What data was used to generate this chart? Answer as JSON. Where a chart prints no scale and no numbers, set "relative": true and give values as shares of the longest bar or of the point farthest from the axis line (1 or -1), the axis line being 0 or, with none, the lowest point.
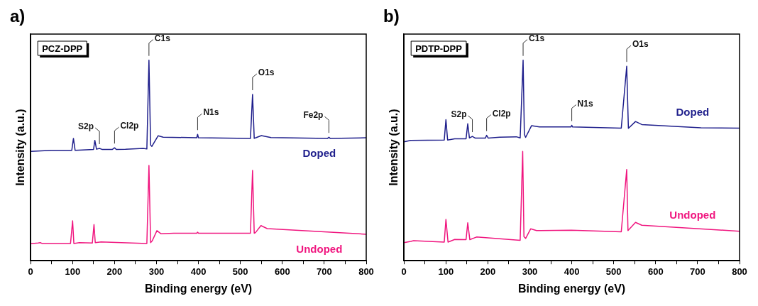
{
  "chart_data": [
    {
      "type": "line",
      "title": "a)",
      "xlabel": "Binding energy (eV)",
      "ylabel": "Intensity (a.u.)",
      "relative": true,
      "grid": false,
      "legend": false,
      "marker": "none",
      "line_style": "solid",
      "xlim": [
        0,
        800
      ],
      "xticks": [
        0,
        {
          "value": 50,
          "label": null
        },
        100,
        {
          "value": 150,
          "label": null
        },
        200,
        {
          "value": 250,
          "label": null
        },
        300,
        {
          "value": 350,
          "label": null
        },
        400,
        {
          "value": 450,
          "label": null
        },
        500,
        {
          "value": 550,
          "label": null
        },
        600,
        {
          "value": 650,
          "label": null
        },
        700,
        {
          "value": 750,
          "label": null
        },
        800
      ],
      "annotations": [
        "PCZ-DPP",
        {
          "text": "S2p",
          "x": 164,
          "y": 0.56
        },
        {
          "text": "Cl2p",
          "x": 200,
          "y": 0.563
        },
        {
          "text": "C1s",
          "x": 282,
          "y": 1.0
        },
        {
          "text": "N1s",
          "x": 398,
          "y": 0.63
        },
        {
          "text": "O1s",
          "x": 529,
          "y": 0.829
        },
        {
          "text": "Fe2p",
          "x": 711,
          "y": 0.616
        }
      ],
      "series": [
        {
          "name": "Doped",
          "color": "#1f1f8c",
          "x": [
            0,
            49,
            98,
            102,
            106,
            150,
            153,
            157,
            164,
            170,
            195,
            200,
            204,
            226,
            268,
            277,
            282,
            286,
            289,
            304,
            316,
            396,
            398,
            400,
            524,
            529,
            533,
            539,
            550,
            573,
            708,
            711,
            714,
            800
          ],
          "values": [
            0.545,
            0.55,
            0.55,
            0.61,
            0.55,
            0.555,
            0.6,
            0.556,
            0.56,
            0.555,
            0.555,
            0.563,
            0.555,
            0.556,
            0.56,
            0.557,
            1.0,
            0.577,
            0.57,
            0.623,
            0.616,
            0.613,
            0.63,
            0.613,
            0.61,
            0.829,
            0.61,
            0.615,
            0.624,
            0.614,
            0.61,
            0.616,
            0.61,
            0.613
          ]
        },
        {
          "name": "Undoped",
          "color": "#f0167f",
          "x": [
            0,
            18,
            23,
            27,
            95,
            100,
            103,
            116,
            147,
            151,
            154,
            168,
            277,
            282,
            286,
            290,
            301,
            311,
            341,
            396,
            398,
            400,
            524,
            529,
            533,
            536,
            549,
            564,
            800
          ],
          "values": [
            0.085,
            0.0885,
            0.09,
            0.086,
            0.086,
            0.199,
            0.086,
            0.09,
            0.088,
            0.18,
            0.09,
            0.094,
            0.086,
            0.475,
            0.09,
            0.1,
            0.15,
            0.134,
            0.137,
            0.137,
            0.142,
            0.137,
            0.137,
            0.45,
            0.137,
            0.14,
            0.175,
            0.16,
            0.132
          ]
        }
      ]
    },
    {
      "type": "line",
      "title": "b)",
      "xlabel": "Binding energy (eV)",
      "ylabel": "Intensity (a.u.)",
      "relative": true,
      "grid": false,
      "legend": false,
      "marker": "none",
      "line_style": "solid",
      "xlim": [
        0,
        800
      ],
      "xticks": [
        0,
        {
          "value": 50,
          "label": null
        },
        100,
        {
          "value": 150,
          "label": null
        },
        200,
        {
          "value": 250,
          "label": null
        },
        300,
        {
          "value": 350,
          "label": null
        },
        400,
        {
          "value": 450,
          "label": null
        },
        500,
        {
          "value": 550,
          "label": null
        },
        600,
        {
          "value": 650,
          "label": null
        },
        700,
        {
          "value": 750,
          "label": null
        },
        800
      ],
      "annotations": [
        "PDTP-DPP",
        {
          "text": "S2p",
          "x": 163,
          "y": 0.62
        },
        {
          "text": "Cl2p",
          "x": 197,
          "y": 0.625
        },
        {
          "text": "C1s",
          "x": 284,
          "y": 1.0
        },
        {
          "text": "N1s",
          "x": 400,
          "y": 0.675
        },
        {
          "text": "O1s",
          "x": 531,
          "y": 0.97
        }
      ],
      "series": [
        {
          "name": "Doped",
          "color": "#1f1f8c",
          "x": [
            0,
            16,
            96,
            100,
            104,
            121,
            148,
            152,
            156,
            163,
            170,
            194,
            197,
            201,
            228,
            268,
            277,
            284,
            287,
            290,
            304,
            323,
            398,
            400,
            402,
            518,
            531,
            535,
            552,
            567,
            708,
            800
          ],
          "values": [
            0.593,
            0.6,
            0.602,
            0.703,
            0.602,
            0.608,
            0.608,
            0.683,
            0.612,
            0.62,
            0.611,
            0.611,
            0.625,
            0.611,
            0.616,
            0.618,
            0.612,
            1.0,
            0.63,
            0.615,
            0.673,
            0.667,
            0.667,
            0.675,
            0.667,
            0.661,
            0.97,
            0.66,
            0.694,
            0.679,
            0.663,
            0.661
          ]
        },
        {
          "name": "Undoped",
          "color": "#f0167f",
          "x": [
            0,
            16,
            23,
            96,
            100,
            105,
            121,
            148,
            152,
            157,
            173,
            277,
            283,
            286,
            290,
            302,
            316,
            399,
            518,
            531,
            534,
            552,
            567,
            800
          ],
          "values": [
            0.09,
            0.096,
            0.1,
            0.093,
            0.206,
            0.093,
            0.106,
            0.105,
            0.189,
            0.105,
            0.118,
            0.102,
            0.545,
            0.12,
            0.111,
            0.159,
            0.15,
            0.152,
            0.144,
            0.455,
            0.15,
            0.191,
            0.177,
            0.147
          ]
        }
      ]
    }
  ]
}
